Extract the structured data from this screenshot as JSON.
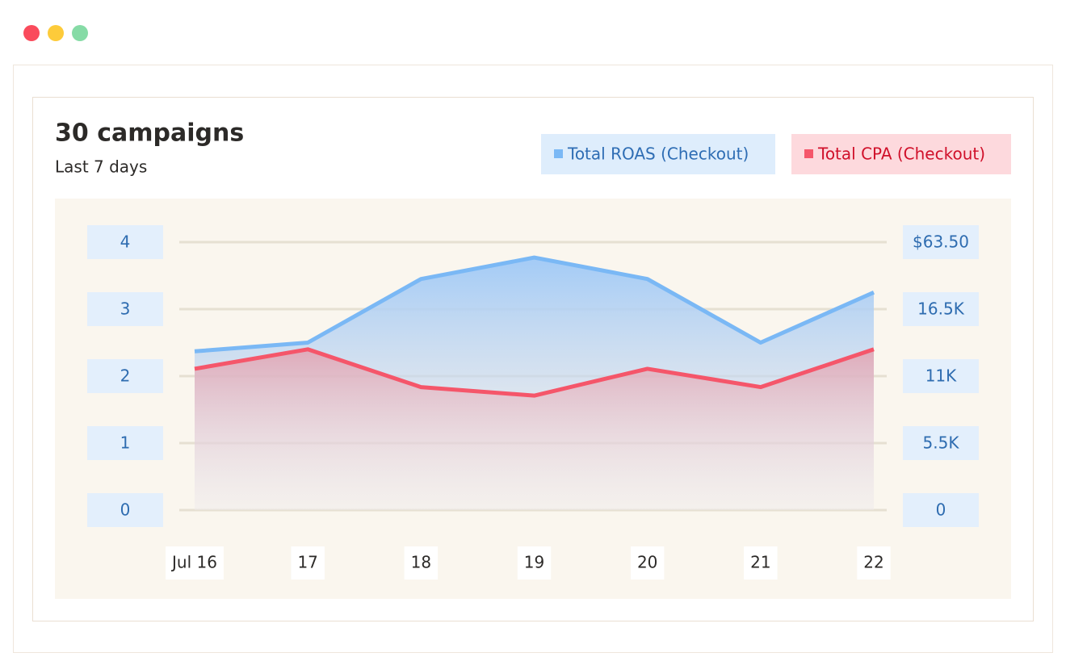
{
  "chart_data": {
    "type": "line",
    "title": "30 campaigns",
    "subtitle": "Last 7 days",
    "categories": [
      "Jul 16",
      "17",
      "18",
      "19",
      "20",
      "21",
      "22"
    ],
    "series": [
      {
        "name": "Total ROAS (Checkout)",
        "color": "#7ab8f5",
        "values": [
          2.37,
          2.5,
          3.45,
          3.77,
          3.45,
          2.5,
          3.25
        ]
      },
      {
        "name": "Total CPA (Checkout)",
        "color": "#f5566a",
        "axis": "y2",
        "values": [
          11600,
          13200,
          10100,
          9400,
          11600,
          10100,
          13200
        ]
      }
    ],
    "ylim": [
      0,
      4
    ],
    "yticks": [
      0,
      1,
      2,
      3,
      4
    ],
    "y2lim": [
      0,
      22000
    ],
    "y2ticks": [
      0,
      {
        "value": 5500,
        "label": "5.5K"
      },
      {
        "value": 11000,
        "label": "11K"
      },
      {
        "value": 16500,
        "label": "16.5K"
      }
    ],
    "y2_top_label": "$63.50",
    "grid": true
  }
}
